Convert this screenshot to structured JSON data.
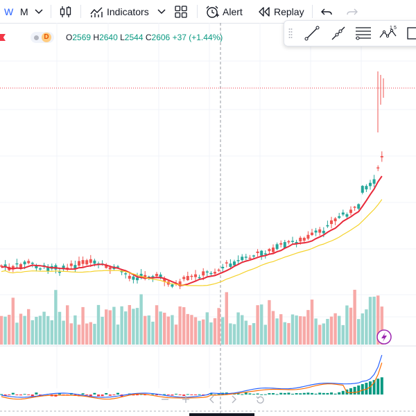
{
  "toolbar": {
    "interval_w": "W",
    "interval_m": "M",
    "indicators_label": "Indicators",
    "alert_label": "Alert",
    "replay_label": "Replay"
  },
  "info": {
    "badge": "D",
    "open_label": "O",
    "open": "2569",
    "high_label": "H",
    "high": "2640",
    "low_label": "L",
    "low": "2544",
    "close_label": "C",
    "close": "2606",
    "change": "+37 (+1.44%)"
  },
  "drawing_tools": {
    "fib_label_1": "1",
    "fib_label_5": "5"
  },
  "colors": {
    "up": "#26a69a",
    "down": "#ef5350",
    "vol_up": "#99d6cf",
    "vol_down": "#f7a9a7",
    "ma_red": "#e8293a",
    "ma_yellow": "#f5d22a",
    "macd_blue": "#2962ff",
    "macd_orange": "#ff6d00",
    "hist_green": "#089981",
    "hist_red": "#f23645"
  },
  "chart_data": {
    "type": "candlestick",
    "series": [
      {
        "name": "price",
        "kind": "ohlc"
      },
      {
        "name": "fast MA",
        "kind": "line",
        "color": "#e8293a"
      },
      {
        "name": "slow MA",
        "kind": "line",
        "color": "#f5d22a"
      },
      {
        "name": "volume",
        "kind": "bar"
      },
      {
        "name": "MACD",
        "kind": "line",
        "color": "#2962ff"
      },
      {
        "name": "signal",
        "kind": "line",
        "color": "#ff6d00"
      },
      {
        "name": "histogram",
        "kind": "bar"
      }
    ],
    "last_bar": {
      "open": 2569,
      "high": 2640,
      "low": 2544,
      "close": 2606
    },
    "grid": true,
    "candle_count": 99
  }
}
